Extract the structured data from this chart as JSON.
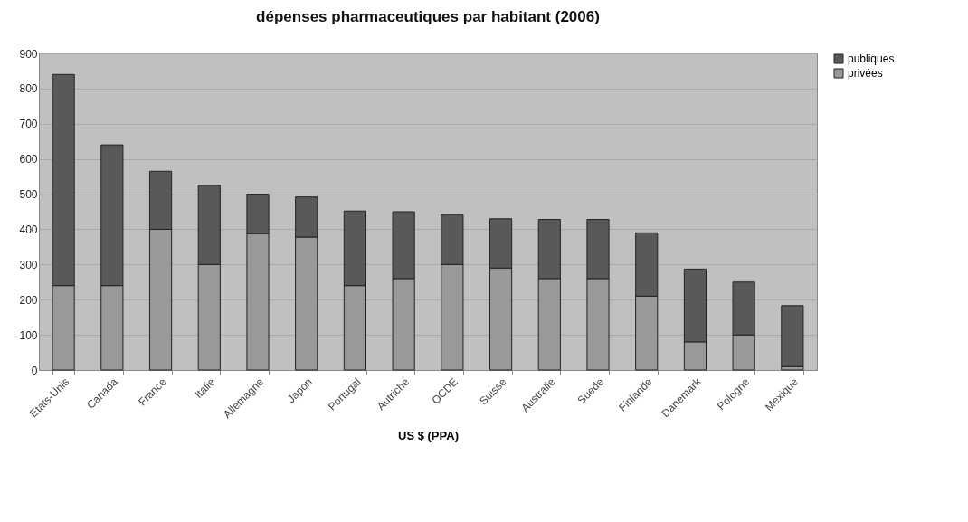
{
  "chart_data": {
    "type": "bar",
    "title": "dépenses pharmaceutiques par habitant (2006)",
    "xlabel": "US $ (PPA)",
    "categories": [
      "Etats-Unis",
      "Canada",
      "France",
      "Italie",
      "Allemagne",
      "Japon",
      "Portugal",
      "Autriche",
      "OCDE",
      "Suisse",
      "Australie",
      "Suede",
      "Finlande",
      "Danemark",
      "Pologne",
      "Mexique"
    ],
    "stacked": true,
    "series": [
      {
        "name": "privées",
        "color": "#999999",
        "values": [
          240,
          240,
          400,
          300,
          388,
          378,
          240,
          260,
          300,
          290,
          260,
          260,
          210,
          80,
          100,
          10
        ]
      },
      {
        "name": "publiques",
        "color": "#595959",
        "values": [
          600,
          400,
          165,
          225,
          112,
          114,
          212,
          190,
          142,
          140,
          168,
          168,
          180,
          207,
          150,
          173
        ]
      }
    ],
    "ylim": [
      0,
      900
    ],
    "yticks": [
      0,
      100,
      200,
      300,
      400,
      500,
      600,
      700,
      800,
      900
    ],
    "grid": "y",
    "legend": "right"
  }
}
